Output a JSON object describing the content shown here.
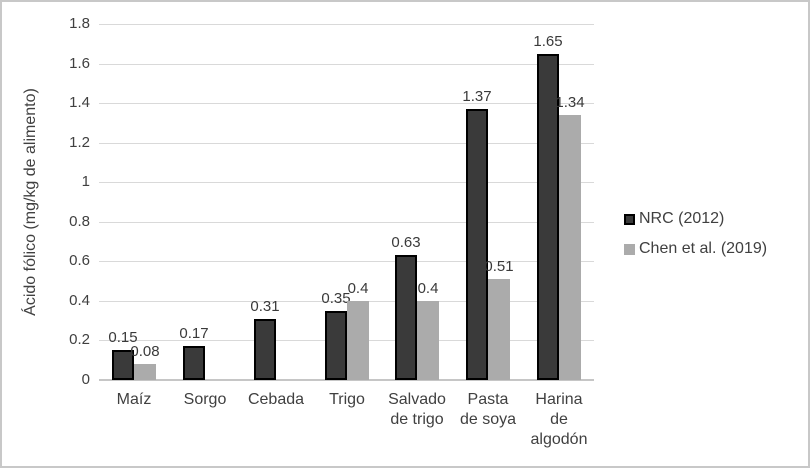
{
  "frame": {
    "background": "#ffffff",
    "border_color": "#c8c8c8"
  },
  "chart_data": {
    "type": "bar",
    "title": "",
    "xlabel": "",
    "ylabel": "Ácido fólico (mg/kg de alimento)",
    "ylim": [
      0,
      1.8
    ],
    "ytick_step": 0.2,
    "ytick_labels": [
      "0",
      "0.2",
      "0.4",
      "0.6",
      "0.8",
      "1",
      "1.2",
      "1.4",
      "1.6",
      "1.8"
    ],
    "grid": true,
    "legend_position": "right",
    "categories": [
      "Maíz",
      "Sorgo",
      "Cebada",
      "Trigo",
      "Salvado de trigo",
      "Pasta de soya",
      "Harina de algodón"
    ],
    "category_label_lines": [
      [
        "Maíz"
      ],
      [
        "Sorgo"
      ],
      [
        "Cebada"
      ],
      [
        "Trigo"
      ],
      [
        "Salvado",
        "de trigo"
      ],
      [
        "Pasta",
        "de soya"
      ],
      [
        "Harina",
        "de",
        "algodón"
      ]
    ],
    "series": [
      {
        "name": "NRC (2012)",
        "color": "#3a3a3a",
        "border_color": "#000000",
        "values": [
          0.15,
          0.17,
          0.31,
          0.35,
          0.63,
          1.37,
          1.65
        ],
        "labels": [
          "0.15",
          "0.17",
          "0.31",
          "0.35",
          "0.63",
          "1.37",
          "1.65"
        ]
      },
      {
        "name": "Chen et al. (2019)",
        "color": "#ababab",
        "border_color": null,
        "values": [
          0.08,
          null,
          null,
          0.4,
          0.4,
          0.51,
          1.34
        ],
        "labels": [
          "0.08",
          null,
          null,
          "0.4",
          "0.4",
          "0.51",
          "1.34"
        ]
      }
    ],
    "colors": {
      "gridline": "#d9d9d9",
      "axis_line": "#c6c6c6",
      "text": "#404040"
    }
  }
}
